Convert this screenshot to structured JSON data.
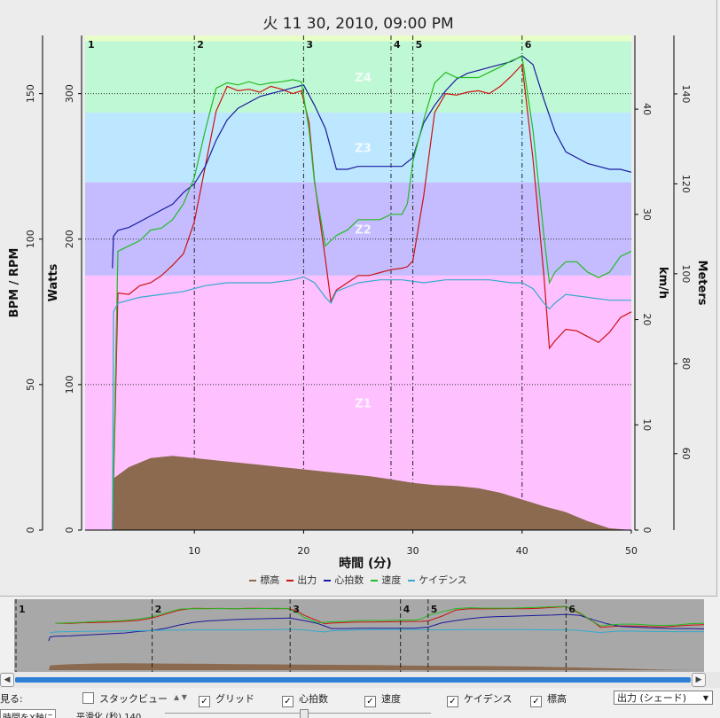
{
  "window": {
    "title": "火 11 30, 2010, 09:00 PM"
  },
  "legend": [
    {
      "label": "標高",
      "color": "#8b6a4f"
    },
    {
      "label": "出力",
      "color": "#cc1111"
    },
    {
      "label": "心拍数",
      "color": "#1a1a9e"
    },
    {
      "label": "速度",
      "color": "#22bb22"
    },
    {
      "label": "ケイデンス",
      "color": "#33aacc"
    }
  ],
  "controls": {
    "view_label": "見る:",
    "stack_view_label": "スタックビュー",
    "grid_label": "グリッド",
    "hr_label": "心拍数",
    "speed_label": "速度",
    "cadence_label": "ケイデンス",
    "altitude_label": "標高",
    "series_select_value": "出力 (シェード)",
    "row2_left": "時間をX軸に",
    "row2_smooth": "平滑化 (秒) 140"
  },
  "colors": {
    "z1": "#ffc0ff",
    "z2": "#c4bcff",
    "z3": "#bde7ff",
    "z4": "#bff8d4",
    "top": "#e7ffc6",
    "altitude_fill": "#8b6a4f",
    "overview_bg": "#a8a8a8"
  },
  "chart_data": {
    "type": "line",
    "title": "火 11 30, 2010, 09:00 PM",
    "xlabel": "時間 (分)",
    "xlim": [
      0,
      50
    ],
    "x_ticks": [
      10,
      20,
      30,
      40,
      50
    ],
    "axes": {
      "bpm_rpm": {
        "label": "BPM / RPM",
        "lim": [
          0,
          170
        ],
        "ticks": [
          0,
          50,
          100,
          150
        ]
      },
      "watts": {
        "label": "Watts",
        "lim": [
          0,
          340
        ],
        "ticks": [
          0,
          100,
          200,
          300
        ],
        "gridlines": [
          100,
          200,
          300
        ]
      },
      "kmh": {
        "label": "km/h",
        "lim": [
          0,
          47
        ],
        "ticks": [
          0,
          10,
          20,
          30,
          40
        ]
      },
      "meters": {
        "label": "Meters",
        "lim": [
          43,
          153
        ],
        "ticks": [
          60,
          80,
          100,
          120,
          140
        ]
      }
    },
    "zones": [
      {
        "name": "Z1",
        "from": 0,
        "to": 175
      },
      {
        "name": "Z2",
        "from": 175,
        "to": 239
      },
      {
        "name": "Z3",
        "from": 239,
        "to": 287
      },
      {
        "name": "Z4",
        "from": 287,
        "to": 336
      },
      {
        "name": "",
        "from": 336,
        "to": 340
      }
    ],
    "laps": [
      {
        "label": "1",
        "x": 0
      },
      {
        "label": "2",
        "x": 10
      },
      {
        "label": "3",
        "x": 20
      },
      {
        "label": "4",
        "x": 28
      },
      {
        "label": "5",
        "x": 30
      },
      {
        "label": "6",
        "x": 40
      }
    ],
    "series": [
      {
        "name": "標高",
        "axis": "meters",
        "x": [
          2.5,
          2.6,
          4,
          6,
          8,
          10,
          12,
          14,
          16,
          18,
          20,
          22,
          24,
          26,
          28,
          30,
          32,
          34,
          36,
          38,
          40,
          42,
          44,
          46,
          48,
          50
        ],
        "values": [
          43,
          54.5,
          57,
          59,
          59.5,
          59,
          58.5,
          58,
          57.5,
          57,
          56.5,
          56,
          55.5,
          55,
          54.3,
          53.5,
          53,
          52.8,
          52.3,
          51.3,
          49.8,
          48.3,
          47,
          45,
          43.4,
          43
        ]
      },
      {
        "name": "出力",
        "axis": "watts",
        "x": [
          2.5,
          3,
          4,
          5,
          6,
          7,
          8,
          9,
          10,
          11,
          12,
          13,
          14,
          15,
          16,
          17,
          18,
          19,
          19.8,
          20.5,
          21,
          22,
          22.5,
          23,
          24,
          25,
          26,
          27,
          28,
          29,
          29.5,
          30,
          31,
          32,
          33,
          34,
          35,
          36,
          37,
          38,
          39,
          40,
          41,
          42,
          42.5,
          43,
          44,
          45,
          46,
          47,
          48,
          49,
          50
        ],
        "values": [
          0,
          163,
          162,
          168,
          170,
          175,
          182,
          190,
          212,
          250,
          288,
          305,
          302,
          303,
          301,
          305,
          303,
          300,
          302,
          280,
          240,
          186,
          157,
          165,
          170,
          175,
          175,
          177,
          179,
          180,
          181,
          185,
          230,
          287,
          300,
          299,
          301,
          302,
          300,
          305,
          312,
          320,
          255,
          175,
          125,
          130,
          138,
          137,
          133,
          129,
          136,
          146,
          150
        ]
      },
      {
        "name": "心拍数",
        "axis": "bpm_rpm",
        "x": [
          2.5,
          2.6,
          3,
          4,
          5,
          6,
          7,
          8,
          9,
          10,
          11,
          12,
          13,
          14,
          15,
          16,
          17,
          18,
          19,
          20,
          21,
          22,
          23,
          24,
          25,
          26,
          27,
          28,
          29,
          30,
          31,
          32,
          33,
          34,
          35,
          36,
          37,
          38,
          39,
          40,
          41,
          42,
          43,
          44,
          45,
          46,
          47,
          48,
          49,
          50
        ],
        "values": [
          90,
          101,
          103,
          104,
          106,
          108,
          110,
          112,
          116,
          119,
          125,
          134,
          141,
          145,
          147,
          149,
          150,
          151,
          152,
          153,
          146,
          138,
          124,
          124,
          125,
          125,
          125,
          125,
          125,
          128,
          140,
          146,
          151,
          155,
          157,
          158,
          159,
          160,
          161,
          163,
          160,
          148,
          137,
          130,
          128,
          126,
          125,
          124,
          124,
          123
        ]
      },
      {
        "name": "速度",
        "axis": "kmh",
        "x": [
          2.5,
          3,
          4,
          5,
          6,
          7,
          8,
          9,
          10,
          11,
          12,
          13,
          14,
          15,
          16,
          17,
          18,
          19,
          19.8,
          20.5,
          21,
          22,
          22.5,
          23,
          24,
          25,
          26,
          27,
          28,
          29,
          29.5,
          30,
          31,
          32,
          33,
          34,
          35,
          36,
          37,
          38,
          39,
          40,
          41,
          42,
          42.5,
          43,
          44,
          45,
          46,
          47,
          48,
          49,
          50
        ],
        "values": [
          0,
          26.5,
          27,
          27.5,
          28.5,
          28.7,
          29.5,
          31,
          33.5,
          38,
          42,
          42.5,
          42.3,
          42.6,
          42.3,
          42.5,
          42.6,
          42.8,
          42.6,
          38,
          33,
          27,
          27.5,
          28,
          28.5,
          29.5,
          29.5,
          29.5,
          30,
          30,
          31,
          35,
          39,
          42.5,
          43.5,
          43,
          43,
          43,
          43.5,
          44,
          44.6,
          45,
          38,
          28,
          23.5,
          24.5,
          25.5,
          25.5,
          24.5,
          24,
          24.5,
          26,
          26.5
        ]
      },
      {
        "name": "ケイデンス",
        "axis": "bpm_rpm",
        "x": [
          2.5,
          2.6,
          3,
          5,
          7,
          9,
          11,
          13,
          15,
          17,
          19,
          20,
          21,
          22,
          22.5,
          23,
          25,
          27,
          29,
          31,
          33,
          35,
          37,
          39,
          40,
          41,
          42,
          42.5,
          43,
          44,
          46,
          48,
          50
        ],
        "values": [
          0,
          75,
          78,
          80,
          81,
          82,
          84,
          85,
          85,
          85,
          86,
          87,
          85,
          80,
          78,
          82,
          85,
          86,
          86,
          85,
          86,
          86,
          86,
          85,
          85,
          83,
          78,
          76,
          78,
          81,
          80,
          79,
          79
        ]
      }
    ]
  }
}
